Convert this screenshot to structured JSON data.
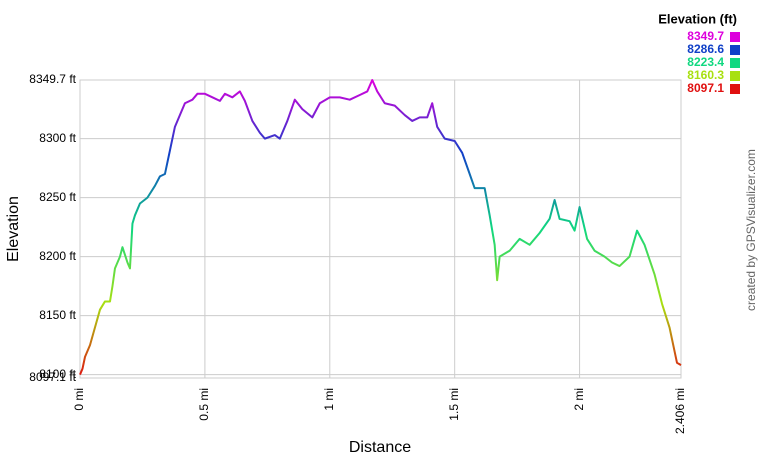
{
  "chart_data": {
    "type": "line",
    "y_label": "Elevation",
    "x_label": "Distance",
    "credit": "created by GPSVisualizer.com",
    "legend_title": "Elevation (ft)",
    "legend": [
      {
        "value": 8349.7,
        "color": "#dd00dd"
      },
      {
        "value": 8286.6,
        "color": "#1040c8"
      },
      {
        "value": 8223.4,
        "color": "#10d880"
      },
      {
        "value": 8160.3,
        "color": "#a8e010"
      },
      {
        "value": 8097.1,
        "color": "#e01010"
      }
    ],
    "xlim": [
      0,
      2.406
    ],
    "xticks": [
      {
        "value": 0,
        "label": "0 mi"
      },
      {
        "value": 0.5,
        "label": "0.5 mi"
      },
      {
        "value": 1,
        "label": "1 mi"
      },
      {
        "value": 1.5,
        "label": "1.5 mi"
      },
      {
        "value": 2,
        "label": "2 mi"
      },
      {
        "value": 2.406,
        "label": "2.406 mi"
      }
    ],
    "ylim": [
      8097.1,
      8349.7
    ],
    "yticks": [
      {
        "value": 8097.1,
        "label": "8097.1 ft"
      },
      {
        "value": 8100,
        "label": "8100 ft"
      },
      {
        "value": 8150,
        "label": "8150 ft"
      },
      {
        "value": 8200,
        "label": "8200 ft"
      },
      {
        "value": 8250,
        "label": "8250 ft"
      },
      {
        "value": 8300,
        "label": "8300 ft"
      },
      {
        "value": 8349.7,
        "label": "8349.7 ft"
      }
    ],
    "grid": true,
    "x": [
      0,
      0.01,
      0.02,
      0.04,
      0.06,
      0.08,
      0.1,
      0.12,
      0.13,
      0.14,
      0.16,
      0.17,
      0.19,
      0.2,
      0.21,
      0.22,
      0.24,
      0.27,
      0.3,
      0.32,
      0.34,
      0.36,
      0.38,
      0.4,
      0.42,
      0.45,
      0.47,
      0.5,
      0.53,
      0.56,
      0.58,
      0.61,
      0.64,
      0.66,
      0.69,
      0.72,
      0.74,
      0.78,
      0.8,
      0.83,
      0.86,
      0.89,
      0.93,
      0.96,
      1.0,
      1.04,
      1.08,
      1.12,
      1.15,
      1.17,
      1.19,
      1.22,
      1.26,
      1.3,
      1.33,
      1.36,
      1.39,
      1.41,
      1.43,
      1.46,
      1.5,
      1.53,
      1.56,
      1.58,
      1.62,
      1.64,
      1.66,
      1.67,
      1.68,
      1.72,
      1.76,
      1.8,
      1.84,
      1.88,
      1.9,
      1.92,
      1.96,
      1.98,
      2.0,
      2.03,
      2.06,
      2.1,
      2.13,
      2.16,
      2.2,
      2.23,
      2.26,
      2.3,
      2.33,
      2.36,
      2.39,
      2.406
    ],
    "values": [
      8100,
      8105,
      8115,
      8125,
      8140,
      8155,
      8162,
      8162,
      8175,
      8190,
      8200,
      8208,
      8195,
      8190,
      8228,
      8235,
      8245,
      8250,
      8260,
      8268,
      8270,
      8290,
      8310,
      8320,
      8330,
      8333,
      8338,
      8338,
      8335,
      8332,
      8338,
      8335,
      8340,
      8332,
      8315,
      8305,
      8300,
      8303,
      8300,
      8315,
      8333,
      8325,
      8318,
      8330,
      8335,
      8335,
      8333,
      8337,
      8340,
      8349.7,
      8340,
      8330,
      8328,
      8320,
      8315,
      8318,
      8318,
      8330,
      8310,
      8300,
      8298,
      8288,
      8270,
      8258,
      8258,
      8235,
      8210,
      8180,
      8200,
      8205,
      8215,
      8210,
      8220,
      8232,
      8248,
      8232,
      8230,
      8222,
      8242,
      8215,
      8205,
      8200,
      8195,
      8192,
      8200,
      8222,
      8210,
      8185,
      8160,
      8140,
      8110,
      8108
    ]
  }
}
